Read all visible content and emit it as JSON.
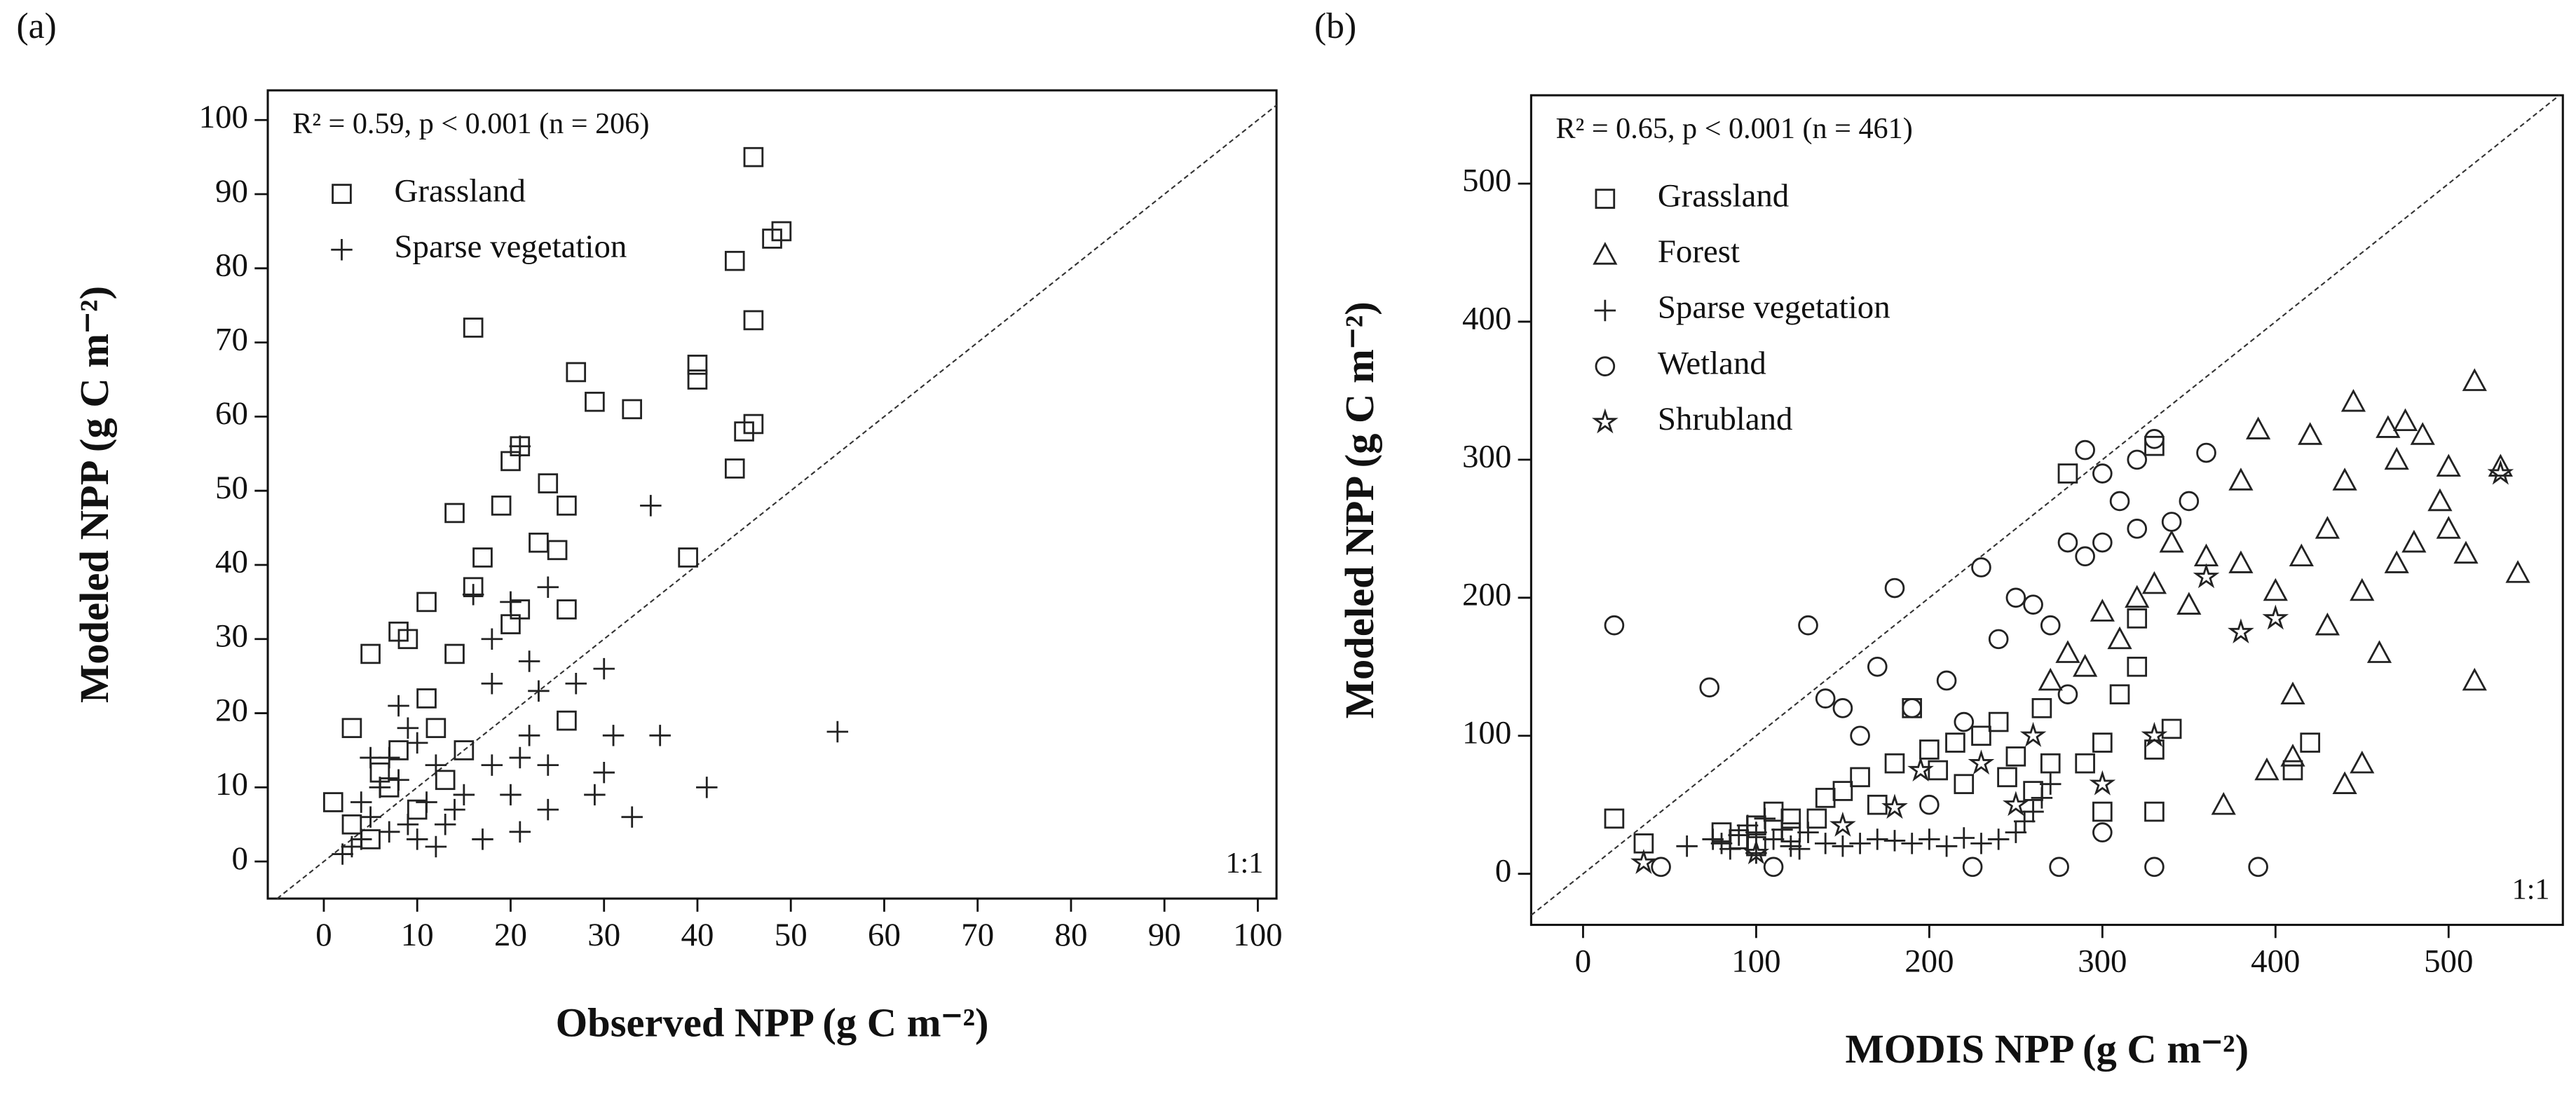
{
  "chart_data": [
    {
      "type": "scatter",
      "panel_label": "(a)",
      "annotation": "R² = 0.59, p < 0.001 (n = 206)",
      "identity_label": "1:1",
      "identity_line": true,
      "x_label": "Observed NPP (g C m⁻²)",
      "y_label": "Modeled NPP (g C m⁻²)",
      "legend": "upper left",
      "xlim": [
        -6,
        102
      ],
      "ylim": [
        -5,
        104
      ],
      "xticks": [
        0,
        10,
        20,
        30,
        40,
        50,
        60,
        70,
        80,
        90,
        100
      ],
      "yticks": [
        0,
        10,
        20,
        30,
        40,
        50,
        60,
        70,
        80,
        90,
        100
      ],
      "series": [
        {
          "name": "Grassland",
          "marker": "square",
          "color": "#222222",
          "x": [
            46,
            49,
            48,
            44,
            16,
            46,
            27,
            40,
            40,
            29,
            33,
            46,
            45,
            21,
            20,
            24,
            44,
            19,
            26,
            14,
            17,
            23,
            25,
            39,
            11,
            21,
            26,
            16,
            8,
            9,
            14,
            5,
            20,
            11,
            3,
            15,
            12,
            6,
            8,
            1,
            3,
            7,
            13,
            26,
            10,
            5
          ],
          "values": [
            95,
            85,
            84,
            81,
            72,
            73,
            66,
            67,
            65,
            62,
            61,
            59,
            58,
            56,
            54,
            51,
            53,
            48,
            48,
            47,
            41,
            43,
            42,
            41,
            35,
            34,
            34,
            37,
            31,
            30,
            28,
            28,
            32,
            22,
            18,
            15,
            18,
            12,
            15,
            8,
            5,
            10,
            11,
            19,
            7,
            3
          ]
        },
        {
          "name": "Sparse vegetation",
          "marker": "plus",
          "color": "#222222",
          "x": [
            55,
            21,
            35,
            24,
            16,
            18,
            20,
            22,
            30,
            27,
            18,
            23,
            36,
            31,
            21,
            24,
            30,
            41,
            29,
            33,
            24,
            21,
            17,
            20,
            15,
            12,
            10,
            8,
            7,
            6,
            5,
            4,
            3,
            2,
            9,
            11,
            13,
            14,
            7,
            8,
            10,
            12,
            5,
            4,
            9,
            18,
            22
          ],
          "values": [
            17.5,
            56,
            48,
            37,
            36,
            30,
            35,
            27,
            26,
            24,
            24,
            23,
            17,
            17,
            14,
            13,
            12,
            10,
            9,
            6,
            7,
            4,
            3,
            9,
            9,
            13,
            16,
            21,
            14,
            10,
            6,
            3,
            2,
            1,
            5,
            8,
            5,
            7,
            4,
            11,
            3,
            2,
            14,
            8,
            18,
            13,
            17
          ]
        }
      ]
    },
    {
      "type": "scatter",
      "panel_label": "(b)",
      "annotation": "R² = 0.65, p < 0.001 (n = 461)",
      "identity_label": "1:1",
      "identity_line": true,
      "x_label": "MODIS NPP (g C m⁻²)",
      "y_label": "Modeled NPP (g C m⁻²)",
      "legend": "upper left",
      "xlim": [
        -30,
        566
      ],
      "ylim": [
        -37,
        564
      ],
      "xticks": [
        0,
        100,
        200,
        300,
        400,
        500
      ],
      "yticks": [
        0,
        100,
        200,
        300,
        400,
        500
      ],
      "series": [
        {
          "name": "Grassland",
          "marker": "square",
          "color": "#222222",
          "x": [
            18,
            35,
            80,
            100,
            120,
            140,
            160,
            180,
            190,
            200,
            215,
            230,
            240,
            250,
            260,
            270,
            290,
            300,
            310,
            320,
            330,
            340,
            330,
            280,
            320,
            420,
            410,
            330,
            300,
            100,
            150,
            170,
            220,
            120,
            110,
            90,
            135,
            205,
            245,
            265
          ],
          "values": [
            40,
            22,
            30,
            35,
            40,
            55,
            70,
            80,
            120,
            90,
            95,
            100,
            110,
            85,
            60,
            80,
            80,
            95,
            130,
            150,
            90,
            105,
            310,
            290,
            185,
            95,
            75,
            45,
            45,
            20,
            60,
            50,
            65,
            30,
            45,
            25,
            40,
            75,
            70,
            120
          ]
        },
        {
          "name": "Forest",
          "marker": "triangle",
          "color": "#222222",
          "x": [
            515,
            475,
            485,
            445,
            465,
            420,
            390,
            530,
            500,
            470,
            495,
            440,
            510,
            540,
            470,
            415,
            430,
            400,
            380,
            360,
            340,
            330,
            320,
            300,
            280,
            350,
            430,
            460,
            500,
            515,
            410,
            450,
            440,
            410,
            395,
            370,
            310,
            290,
            270,
            450,
            480,
            380
          ],
          "values": [
            357,
            328,
            318,
            342,
            323,
            318,
            322,
            295,
            295,
            300,
            270,
            285,
            232,
            218,
            225,
            230,
            250,
            205,
            225,
            230,
            240,
            210,
            200,
            190,
            160,
            195,
            180,
            160,
            250,
            140,
            130,
            80,
            65,
            85,
            75,
            50,
            170,
            150,
            140,
            205,
            240,
            285
          ]
        },
        {
          "name": "Sparse vegetation",
          "marker": "plus",
          "color": "#222222",
          "x": [
            60,
            80,
            90,
            100,
            110,
            120,
            140,
            160,
            180,
            200,
            220,
            240,
            250,
            260,
            270,
            100,
            95,
            105,
            130,
            85,
            115,
            125,
            230,
            210,
            190,
            170,
            150,
            75,
            265,
            255
          ],
          "values": [
            20,
            22,
            28,
            30,
            25,
            20,
            22,
            22,
            24,
            25,
            26,
            25,
            30,
            45,
            65,
            15,
            35,
            40,
            30,
            18,
            32,
            18,
            22,
            20,
            22,
            25,
            20,
            25,
            55,
            38
          ]
        },
        {
          "name": "Wetland",
          "marker": "circle",
          "color": "#222222",
          "x": [
            18,
            73,
            130,
            180,
            230,
            290,
            300,
            310,
            320,
            330,
            300,
            280,
            250,
            260,
            290,
            270,
            240,
            210,
            190,
            170,
            150,
            140,
            220,
            280,
            320,
            340,
            350,
            390,
            330,
            275,
            225,
            45,
            110,
            160,
            200,
            300,
            360
          ],
          "values": [
            180,
            135,
            180,
            207,
            222,
            307,
            290,
            270,
            300,
            315,
            240,
            240,
            200,
            195,
            230,
            180,
            170,
            140,
            120,
            150,
            120,
            127,
            110,
            130,
            250,
            255,
            270,
            5,
            5,
            5,
            5,
            5,
            5,
            100,
            50,
            30,
            305
          ]
        },
        {
          "name": "Shrubland",
          "marker": "star",
          "color": "#222222",
          "x": [
            35,
            530,
            400,
            380,
            360,
            260,
            250,
            230,
            195,
            180,
            300,
            330,
            100,
            150
          ],
          "values": [
            8,
            290,
            185,
            175,
            215,
            100,
            50,
            80,
            75,
            48,
            65,
            100,
            15,
            35
          ]
        }
      ]
    }
  ]
}
